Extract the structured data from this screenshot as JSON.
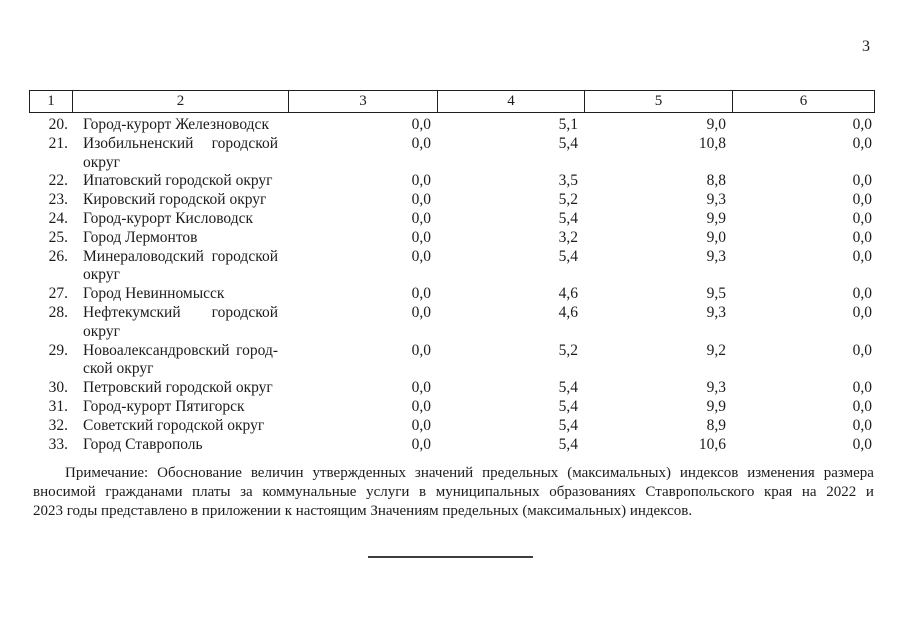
{
  "page": {
    "number": "3"
  },
  "table": {
    "header": [
      "1",
      "2",
      "3",
      "4",
      "5",
      "6"
    ],
    "rows": [
      {
        "num": "20.",
        "name_lines": [
          "Город-курорт Железноводск"
        ],
        "values": [
          "0,0",
          "5,1",
          "9,0",
          "0,0"
        ]
      },
      {
        "num": "21.",
        "name_lines": [
          "Изобильненский городской",
          "округ"
        ],
        "values": [
          "0,0",
          "5,4",
          "10,8",
          "0,0"
        ]
      },
      {
        "num": "22.",
        "name_lines": [
          "Ипатовский городской округ"
        ],
        "values": [
          "0,0",
          "3,5",
          "8,8",
          "0,0"
        ]
      },
      {
        "num": "23.",
        "name_lines": [
          "Кировский городской округ"
        ],
        "values": [
          "0,0",
          "5,2",
          "9,3",
          "0,0"
        ]
      },
      {
        "num": "24.",
        "name_lines": [
          "Город-курорт Кисловодск"
        ],
        "values": [
          "0,0",
          "5,4",
          "9,9",
          "0,0"
        ]
      },
      {
        "num": "25.",
        "name_lines": [
          "Город Лермонтов"
        ],
        "values": [
          "0,0",
          "3,2",
          "9,0",
          "0,0"
        ]
      },
      {
        "num": "26.",
        "name_lines": [
          "Минераловодский городской",
          "округ"
        ],
        "values": [
          "0,0",
          "5,4",
          "9,3",
          "0,0"
        ]
      },
      {
        "num": "27.",
        "name_lines": [
          "Город Невинномысск"
        ],
        "values": [
          "0,0",
          "4,6",
          "9,5",
          "0,0"
        ]
      },
      {
        "num": "28.",
        "name_lines": [
          "Нефтекумский городской",
          "округ"
        ],
        "values": [
          "0,0",
          "4,6",
          "9,3",
          "0,0"
        ]
      },
      {
        "num": "29.",
        "name_lines": [
          "Новоалександровский город-",
          "ской округ"
        ],
        "values": [
          "0,0",
          "5,2",
          "9,2",
          "0,0"
        ]
      },
      {
        "num": "30.",
        "name_lines": [
          "Петровский городской округ"
        ],
        "values": [
          "0,0",
          "5,4",
          "9,3",
          "0,0"
        ]
      },
      {
        "num": "31.",
        "name_lines": [
          "Город-курорт Пятигорск"
        ],
        "values": [
          "0,0",
          "5,4",
          "9,9",
          "0,0"
        ]
      },
      {
        "num": "32.",
        "name_lines": [
          "Советский городской округ"
        ],
        "values": [
          "0,0",
          "5,4",
          "8,9",
          "0,0"
        ]
      },
      {
        "num": "33.",
        "name_lines": [
          "Город Ставрополь"
        ],
        "values": [
          "0,0",
          "5,4",
          "10,6",
          "0,0"
        ]
      }
    ]
  },
  "note": {
    "lines": [
      "Примечание: Обоснование величин утвержденных значений предельных (максимальных) индексов изменения размера",
      "вносимой гражданами платы за коммунальные услуги в муниципальных образованиях Ставропольского края на 2022 и",
      "2023 годы представлено в приложении к настоящим Значениям предельных (максимальных) индексов."
    ]
  }
}
